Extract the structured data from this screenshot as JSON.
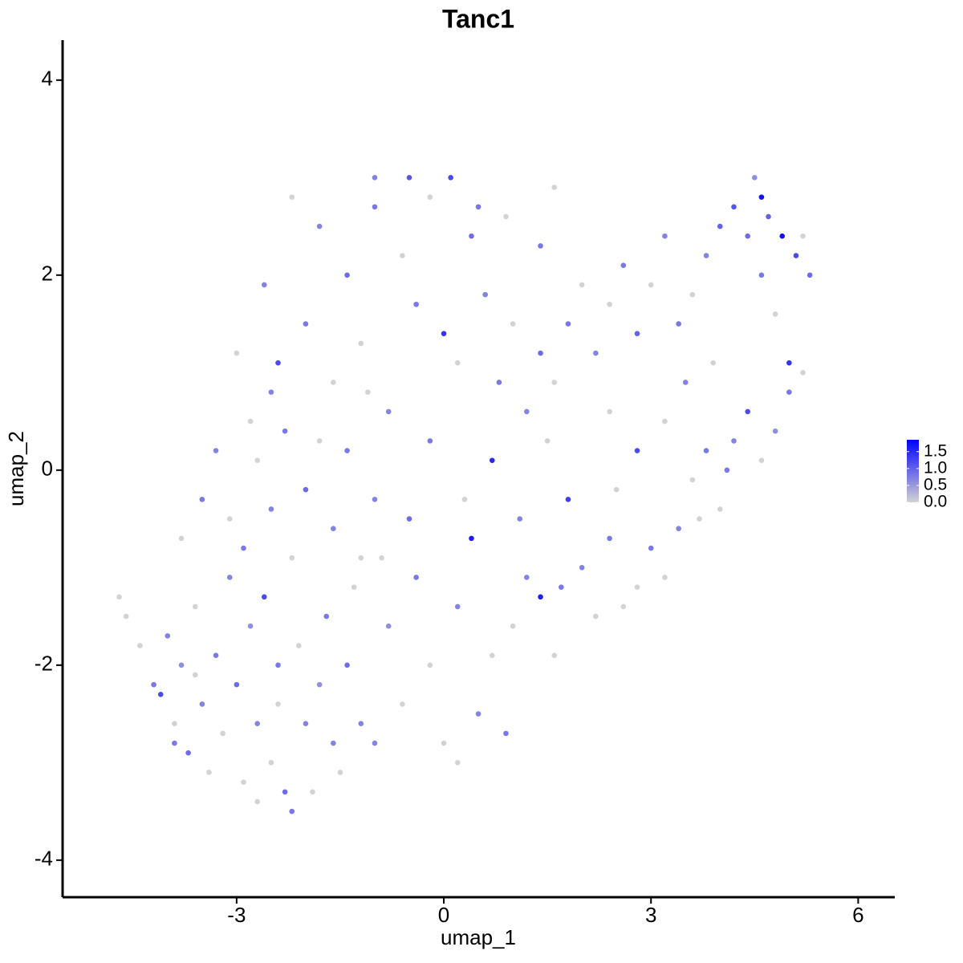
{
  "chart_data": {
    "type": "scatter",
    "title": "Tanc1",
    "x_label": "umap_1",
    "y_label": "umap_2",
    "xlim": [
      -5.52,
      6.53
    ],
    "ylim": [
      -4.38,
      4.41
    ],
    "xticks": [
      -3,
      0,
      3,
      6
    ],
    "yticks": [
      -4,
      -2,
      0,
      2,
      4
    ],
    "color_low": "#d3d3d3",
    "color_high": "#0000ff",
    "color_lim": [
      0,
      1.85
    ],
    "legend_ticks": [
      {
        "value": 0,
        "label": "0.0"
      },
      0.5,
      {
        "value": 1,
        "label": "1.0"
      },
      1.5
    ],
    "x": [
      -4.7,
      -4.6,
      -4.4,
      -4.2,
      -4.1,
      -4.0,
      -3.9,
      -3.8,
      -3.7,
      -3.6,
      -3.5,
      -3.4,
      -3.3,
      -3.2,
      -3.1,
      -3.0,
      -2.9,
      -2.8,
      -2.7,
      -2.6,
      -2.5,
      -2.4,
      -2.3,
      -2.2,
      -2.1,
      -2.0,
      -1.9,
      -1.8,
      -1.7,
      -1.6,
      -1.5,
      -1.4,
      -1.3,
      -1.2,
      -3.8,
      -3.5,
      -3.3,
      -3.1,
      -2.9,
      -2.7,
      -2.5,
      -2.3,
      -2.2,
      -2.0,
      -1.8,
      -1.6,
      -1.4,
      -1.2,
      -1.0,
      -0.8,
      -0.6,
      -0.4,
      -0.2,
      0.0,
      0.2,
      0.4,
      0.5,
      0.7,
      0.9,
      1.0,
      1.2,
      1.4,
      1.6,
      1.8,
      2.0,
      2.2,
      2.4,
      2.6,
      2.8,
      3.0,
      3.2,
      3.4,
      3.6,
      3.8,
      4.0,
      4.2,
      4.4,
      4.6,
      4.8,
      5.0,
      5.2,
      5.0,
      4.8,
      4.6,
      4.4,
      4.2,
      4.5,
      4.6,
      4.7,
      4.9,
      5.1,
      5.3,
      5.2,
      4.0,
      3.8,
      3.6,
      3.4,
      3.2,
      3.0,
      2.8,
      2.6,
      2.4,
      2.2,
      2.0,
      1.8,
      1.6,
      1.4,
      1.2,
      1.0,
      0.8,
      0.7,
      0.6,
      0.4,
      0.2,
      0.0,
      -0.2,
      -0.4,
      -0.6,
      -0.8,
      -1.0,
      -1.2,
      -1.4,
      -1.6,
      -1.8,
      -2.0,
      -2.2,
      -2.4,
      -2.6,
      -2.8,
      -3.0,
      -2.5,
      0.1,
      -0.5,
      0.5,
      0.9,
      -1.0,
      1.6,
      1.4,
      2.4,
      2.8,
      3.2,
      3.5,
      3.9,
      4.1,
      3.7,
      -0.2,
      0.3,
      1.1,
      1.5,
      -3.6,
      -2.4,
      -1.0,
      0.2,
      -0.9,
      -3.9,
      -2.7,
      -1.1,
      -0.5,
      2.5,
      1.7
    ],
    "y": [
      -1.3,
      -1.5,
      -1.8,
      -2.2,
      -2.3,
      -1.7,
      -2.6,
      -2.0,
      -2.9,
      -1.4,
      -2.4,
      -3.1,
      -1.9,
      -2.7,
      -1.1,
      -2.2,
      -3.2,
      -1.6,
      -2.6,
      -1.3,
      -3.0,
      -2.0,
      -3.3,
      -3.5,
      -1.8,
      -2.6,
      -3.3,
      -2.2,
      -1.5,
      -2.8,
      -3.1,
      -2.0,
      -1.2,
      -2.6,
      -0.7,
      -0.3,
      0.2,
      -0.5,
      -0.8,
      0.1,
      -0.4,
      0.4,
      -0.9,
      -0.2,
      0.3,
      -0.6,
      0.2,
      -0.9,
      -0.3,
      -1.6,
      -2.4,
      -1.1,
      -2.0,
      -2.8,
      -1.4,
      -0.7,
      -2.5,
      -1.9,
      -2.7,
      -1.6,
      -1.1,
      -1.3,
      -1.9,
      -0.3,
      -1.0,
      -1.5,
      -0.7,
      -1.4,
      -1.2,
      -0.8,
      -1.1,
      -0.6,
      -0.1,
      0.2,
      -0.4,
      0.3,
      0.6,
      0.1,
      0.4,
      0.8,
      1.0,
      1.1,
      1.6,
      2.0,
      2.4,
      2.7,
      3.0,
      2.8,
      2.6,
      2.4,
      2.2,
      2.0,
      2.4,
      2.5,
      2.2,
      1.8,
      1.5,
      2.4,
      1.9,
      1.4,
      2.1,
      1.7,
      1.2,
      1.9,
      1.5,
      0.9,
      1.2,
      0.6,
      1.5,
      0.9,
      0.1,
      1.8,
      2.4,
      1.1,
      1.4,
      2.8,
      1.7,
      2.2,
      0.6,
      2.7,
      1.3,
      2.0,
      0.9,
      2.5,
      1.5,
      2.8,
      1.1,
      1.9,
      0.5,
      1.2,
      0.8,
      3.0,
      3.0,
      2.7,
      2.6,
      3.0,
      2.9,
      2.3,
      0.6,
      0.2,
      0.5,
      0.9,
      1.1,
      0.0,
      -0.5,
      0.3,
      -0.3,
      -0.5,
      0.3,
      -2.1,
      -2.4,
      -2.8,
      -3.0,
      -0.9,
      -2.8,
      -3.4,
      0.8,
      -0.5,
      -0.2,
      -1.2
    ],
    "values": [
      0,
      0,
      0,
      0.8,
      1.2,
      0.7,
      0,
      0.6,
      0.9,
      0,
      0.7,
      0,
      0.8,
      0,
      0.7,
      0.9,
      0,
      0.6,
      0.7,
      1.2,
      0,
      0.8,
      0.9,
      0.8,
      0,
      0.7,
      0,
      0.6,
      0.8,
      0.7,
      0,
      0.9,
      0,
      0.7,
      0,
      0.8,
      0.7,
      0,
      0.8,
      0,
      0.7,
      0.8,
      0,
      0.9,
      0,
      0.7,
      0.8,
      0,
      0.7,
      0.6,
      0,
      0.8,
      0,
      0,
      0.7,
      1.6,
      0.7,
      0,
      0.8,
      0,
      0.7,
      1.6,
      0,
      1.3,
      0.7,
      0,
      0.8,
      0,
      0,
      0.8,
      0,
      0.7,
      0,
      0.8,
      0,
      0.7,
      1.2,
      0,
      0.6,
      0.8,
      0,
      1.4,
      0,
      0.8,
      0.9,
      1.1,
      0.6,
      1.7,
      1.0,
      1.7,
      1.2,
      0.9,
      0,
      1.0,
      0.7,
      0,
      0.8,
      0.7,
      0,
      1.0,
      0.8,
      0,
      0.7,
      0,
      0.8,
      0,
      0.9,
      0.7,
      0,
      0.8,
      1.5,
      0.7,
      0.9,
      0,
      1.4,
      0,
      0.8,
      0,
      0.7,
      0.8,
      0,
      0.9,
      0,
      0.7,
      0.8,
      0,
      1.2,
      0.7,
      0,
      0,
      0.7,
      1.2,
      1.1,
      0.8,
      0,
      0.7,
      0,
      0.8,
      0,
      1.2,
      0,
      0.7,
      0,
      0.8,
      0,
      0.8,
      0,
      0.7,
      0,
      0,
      0,
      0.7,
      0,
      0,
      0.8,
      0,
      0,
      0.9,
      0,
      0.8
    ]
  }
}
